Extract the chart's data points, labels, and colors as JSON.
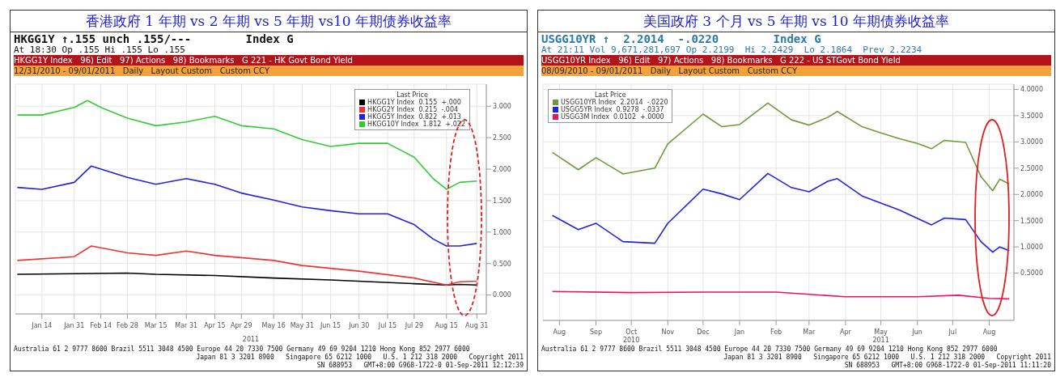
{
  "chart_data": [
    {
      "type": "line",
      "title": "香港政府 1 年期 vs 2 年期 vs 5 年期 vs10 年期债券收益率",
      "xlabel": "2011",
      "annotations": [
        "HKGG1Y ↑.155 unch .155/---        Index G",
        "At 18:30 Op .155 Hi .155 Lo .155",
        "HKGG1Y Index   96) Edit   97) Actions   98) Bookmarks   G 221 - HK Govt Bond Yield",
        "12/31/2010 - 09/01/2011   Daily   Layout Custom   Custom CCY",
        "Australia 61 2 9777 8600 Brazil 5511 3048 4500 Europe 44 20 7330 7500 Germany 49 69 9204 1210 Hong Kong 852 2977 6000",
        "Japan 81 3 3201 8900   Singapore 65 6212 1000   U.S. 1 212 318 2000   Copyright 2011",
        "SN 688953   GMT+8:00 G968-1722-0 01-Sep-2011 12:12:39"
      ],
      "legend": "top right",
      "legend_title": "Last Price",
      "grid": true,
      "xlim": [
        "2010-12-31",
        "2011-09-05"
      ],
      "xticks": [
        {
          "value": "2011-01-14",
          "label": "Jan 14"
        },
        {
          "value": "2011-01-31",
          "label": "Jan 31"
        },
        {
          "value": "2011-02-14",
          "label": "Feb 14"
        },
        {
          "value": "2011-02-28",
          "label": "Feb 28"
        },
        {
          "value": "2011-03-15",
          "label": "Mar 15"
        },
        {
          "value": "2011-03-31",
          "label": "Mar 31"
        },
        {
          "value": "2011-04-15",
          "label": "Apr 15"
        },
        {
          "value": "2011-04-29",
          "label": "Apr 29"
        },
        {
          "value": "2011-05-16",
          "label": "May 16"
        },
        {
          "value": "2011-05-31",
          "label": "May 31"
        },
        {
          "value": "2011-06-15",
          "label": "Jun 15"
        },
        {
          "value": "2011-06-30",
          "label": "Jun 30"
        },
        {
          "value": "2011-07-15",
          "label": "Jul 15"
        },
        {
          "value": "2011-07-29",
          "label": "Jul 29"
        },
        {
          "value": "2011-08-15",
          "label": "Aug 15"
        },
        {
          "value": "2011-08-31",
          "label": "Aug 31"
        }
      ],
      "ylim": [
        -0.3,
        3.35
      ],
      "yticks": [
        {
          "value": 0,
          "label": "0.000"
        },
        {
          "value": 0.5,
          "label": "0.500"
        },
        {
          "value": 1,
          "label": "1.000"
        },
        {
          "value": 1.5,
          "label": "1.500"
        },
        {
          "value": 2,
          "label": "2.000"
        },
        {
          "value": 2.5,
          "label": "2.500"
        },
        {
          "value": 3,
          "label": "3.000"
        }
      ],
      "series": [
        {
          "name": "HKGG1Y Index  0.155  +.000",
          "color": "#000000",
          "x": [
            "2011-01-01",
            "2011-01-31",
            "2011-02-28",
            "2011-03-15",
            "2011-04-15",
            "2011-05-16",
            "2011-06-15",
            "2011-07-29",
            "2011-08-15",
            "2011-08-22",
            "2011-08-31"
          ],
          "values": [
            0.33,
            0.34,
            0.35,
            0.33,
            0.31,
            0.27,
            0.24,
            0.18,
            0.16,
            0.17,
            0.16
          ]
        },
        {
          "name": "HKGG2Y Index  0.215  -.004",
          "color": "#ee3333",
          "x": [
            "2011-01-01",
            "2011-01-31",
            "2011-02-09",
            "2011-02-28",
            "2011-03-15",
            "2011-03-31",
            "2011-04-15",
            "2011-05-16",
            "2011-05-31",
            "2011-06-30",
            "2011-07-29",
            "2011-08-15",
            "2011-08-22",
            "2011-08-31"
          ],
          "values": [
            0.55,
            0.61,
            0.78,
            0.67,
            0.63,
            0.7,
            0.63,
            0.55,
            0.47,
            0.38,
            0.27,
            0.16,
            0.21,
            0.22
          ]
        },
        {
          "name": "HKGG5Y Index  0.822  +.013",
          "color": "#2222dd",
          "x": [
            "2011-01-01",
            "2011-01-14",
            "2011-01-31",
            "2011-02-09",
            "2011-02-28",
            "2011-03-15",
            "2011-03-31",
            "2011-04-15",
            "2011-04-29",
            "2011-05-16",
            "2011-05-31",
            "2011-06-15",
            "2011-06-30",
            "2011-07-15",
            "2011-07-29",
            "2011-08-08",
            "2011-08-15",
            "2011-08-22",
            "2011-08-31"
          ],
          "values": [
            1.71,
            1.68,
            1.79,
            2.05,
            1.87,
            1.76,
            1.85,
            1.76,
            1.62,
            1.51,
            1.4,
            1.34,
            1.29,
            1.29,
            1.12,
            0.89,
            0.78,
            0.78,
            0.82
          ]
        },
        {
          "name": "HKGG10Y Index  1.812  +.022",
          "color": "#33cc33",
          "x": [
            "2011-01-01",
            "2011-01-14",
            "2011-01-31",
            "2011-02-07",
            "2011-02-14",
            "2011-02-28",
            "2011-03-15",
            "2011-03-31",
            "2011-04-15",
            "2011-04-29",
            "2011-05-16",
            "2011-05-31",
            "2011-06-15",
            "2011-06-30",
            "2011-07-15",
            "2011-07-29",
            "2011-08-08",
            "2011-08-15",
            "2011-08-22",
            "2011-08-31"
          ],
          "values": [
            2.86,
            2.86,
            2.98,
            3.09,
            2.98,
            2.81,
            2.69,
            2.75,
            2.84,
            2.69,
            2.64,
            2.47,
            2.36,
            2.41,
            2.41,
            2.19,
            1.85,
            1.68,
            1.79,
            1.81
          ]
        }
      ]
    },
    {
      "type": "line",
      "title": "美国政府 3 个月 vs 5 年期 vs 10 年期债券收益率",
      "annotations": [
        "USGG10YR ↑  2.2014  -.0220        Index G",
        "At 21:11 Vol 9,671,281,697 Op 2.2199  Hi 2.2429  Lo 2.1864  Prev 2.2234",
        "USGG10YR Index   96) Edit   97) Actions   98) Bookmarks   G 222 - US STGovt Bond Yield",
        "08/09/2010 - 09/01/2011   Daily   Layout Custom   Custom CCY",
        "Australia 61 2 9777 8600 Brazil 5511 3048 4500 Europe 44 20 7330 7500 Germany 49 69 9204 1210 Hong Kong 852 2977 6000",
        "Japan 81 3 3201 8900   Singapore 65 6212 1000   U.S. 1 212 318 2000   Copyright 2011",
        "SN 688953   GMT+8:00 G968-1722-0 01-Sep-2011 11:11:20"
      ],
      "legend": "top left",
      "legend_title": "Last Price",
      "grid": true,
      "xlim": [
        "2010-08-01",
        "2011-09-05"
      ],
      "xticks": [
        {
          "value": "2010-08-15",
          "label": "Aug"
        },
        {
          "value": "2010-09-15",
          "label": "Sep"
        },
        {
          "value": "2010-10-15",
          "label": "Oct\n2010"
        },
        {
          "value": "2010-11-15",
          "label": "Nov"
        },
        {
          "value": "2010-12-15",
          "label": "Dec"
        },
        {
          "value": "2011-01-15",
          "label": "Jan"
        },
        {
          "value": "2011-02-15",
          "label": "Feb"
        },
        {
          "value": "2011-03-15",
          "label": "Mar"
        },
        {
          "value": "2011-04-15",
          "label": "Apr"
        },
        {
          "value": "2011-05-15",
          "label": "May\n2011"
        },
        {
          "value": "2011-06-15",
          "label": "Jun"
        },
        {
          "value": "2011-07-15",
          "label": "Jul"
        },
        {
          "value": "2011-08-15",
          "label": "Aug"
        }
      ],
      "ylim": [
        -0.4,
        4.1
      ],
      "yticks": [
        {
          "value": 0.5,
          "label": "0.5000"
        },
        {
          "value": 1,
          "label": "1.0000"
        },
        {
          "value": 1.5,
          "label": "1.5000"
        },
        {
          "value": 2,
          "label": "2.0000"
        },
        {
          "value": 2.5,
          "label": "2.5000"
        },
        {
          "value": 3,
          "label": "3.0000"
        },
        {
          "value": 3.5,
          "label": "3.5000"
        },
        {
          "value": 4,
          "label": "4.0000"
        }
      ],
      "series": [
        {
          "name": "USGG10YR Index  2.2014  -.0220",
          "color": "#6f9a3a",
          "x": [
            "2010-08-09",
            "2010-08-31",
            "2010-09-15",
            "2010-10-08",
            "2010-11-04",
            "2010-11-15",
            "2010-12-15",
            "2010-12-31",
            "2011-01-15",
            "2011-02-08",
            "2011-02-28",
            "2011-03-15",
            "2011-03-31",
            "2011-04-08",
            "2011-04-29",
            "2011-05-15",
            "2011-05-31",
            "2011-06-15",
            "2011-06-27",
            "2011-07-08",
            "2011-07-26",
            "2011-08-08",
            "2011-08-18",
            "2011-08-24",
            "2011-09-01"
          ],
          "values": [
            2.8,
            2.47,
            2.7,
            2.39,
            2.5,
            2.96,
            3.53,
            3.29,
            3.33,
            3.74,
            3.42,
            3.32,
            3.47,
            3.58,
            3.29,
            3.17,
            3.06,
            2.97,
            2.87,
            3.03,
            2.99,
            2.34,
            2.07,
            2.29,
            2.2
          ]
        },
        {
          "name": "USGG5YR Index  0.9278  -.0337",
          "color": "#2222dd",
          "x": [
            "2010-08-09",
            "2010-08-31",
            "2010-09-15",
            "2010-10-08",
            "2010-11-04",
            "2010-11-15",
            "2010-12-15",
            "2010-12-31",
            "2011-01-15",
            "2011-02-08",
            "2011-02-28",
            "2011-03-15",
            "2011-03-31",
            "2011-04-08",
            "2011-04-29",
            "2011-05-31",
            "2011-06-27",
            "2011-07-08",
            "2011-07-26",
            "2011-08-08",
            "2011-08-18",
            "2011-08-24",
            "2011-09-01"
          ],
          "values": [
            1.6,
            1.33,
            1.45,
            1.1,
            1.07,
            1.45,
            2.1,
            2.01,
            1.9,
            2.4,
            2.13,
            2.05,
            2.25,
            2.3,
            1.97,
            1.7,
            1.42,
            1.55,
            1.52,
            1.1,
            0.9,
            1.0,
            0.93
          ]
        },
        {
          "name": "USGG3M Index  0.0102  +.0000",
          "color": "#ee1166",
          "x": [
            "2010-08-09",
            "2010-10-15",
            "2010-12-15",
            "2011-02-15",
            "2011-04-15",
            "2011-06-15",
            "2011-07-20",
            "2011-08-15",
            "2011-09-01"
          ],
          "values": [
            0.15,
            0.13,
            0.14,
            0.14,
            0.05,
            0.05,
            0.08,
            0.02,
            0.01
          ]
        }
      ]
    }
  ]
}
